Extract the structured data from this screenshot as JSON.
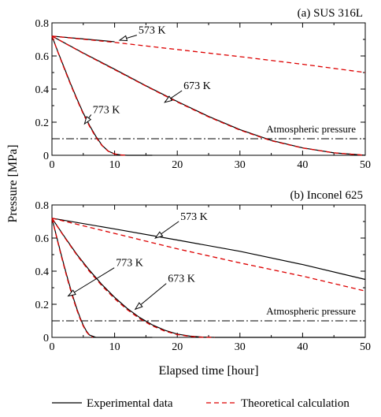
{
  "chart_data": {
    "type": "line",
    "ylabel": "Pressure [MPa]",
    "xlabel": "Elapsed time [hour]",
    "legend": {
      "position": "bottom",
      "entries": [
        {
          "name": "Experimental data",
          "style": "solid",
          "color": "#000000"
        },
        {
          "name": "Theoretical calculation",
          "style": "dashed",
          "color": "#dd0000"
        }
      ]
    },
    "atmospheric": {
      "label": "Atmospheric pressure",
      "y": 0.1
    },
    "panels": [
      {
        "id": "a",
        "title": "(a) SUS 316L",
        "xlim": [
          0,
          50
        ],
        "ylim": [
          0,
          0.8
        ],
        "xticks": [
          0,
          10,
          20,
          30,
          40,
          50
        ],
        "yticks": [
          0,
          0.2,
          0.4,
          0.6,
          0.8
        ],
        "ytick_labels": [
          "0",
          "0.2",
          "0.4",
          "0.6",
          "0.8"
        ],
        "series": [
          {
            "temp": "573 K",
            "kind": "experimental",
            "x": [
              0,
              5,
              10
            ],
            "y": [
              0.72,
              0.703,
              0.686
            ]
          },
          {
            "temp": "573 K",
            "kind": "theoretical",
            "x": [
              0,
              10,
              20,
              30,
              40,
              50
            ],
            "y": [
              0.72,
              0.682,
              0.639,
              0.596,
              0.55,
              0.5
            ]
          },
          {
            "temp": "673 K",
            "kind": "experimental",
            "x": [
              0,
              5,
              10,
              15,
              20,
              25,
              30,
              35,
              40,
              45,
              50
            ],
            "y": [
              0.72,
              0.618,
              0.52,
              0.42,
              0.325,
              0.235,
              0.155,
              0.09,
              0.045,
              0.015,
              0.0
            ]
          },
          {
            "temp": "673 K",
            "kind": "theoretical",
            "x": [
              0,
              5,
              10,
              15,
              20,
              25,
              30,
              35,
              40,
              45,
              50
            ],
            "y": [
              0.72,
              0.616,
              0.517,
              0.418,
              0.322,
              0.232,
              0.152,
              0.088,
              0.044,
              0.015,
              0.0
            ]
          },
          {
            "temp": "773 K",
            "kind": "experimental",
            "x": [
              0,
              1,
              2,
              3,
              4,
              5,
              6,
              7,
              8,
              9,
              10,
              11,
              12,
              13,
              14,
              16
            ],
            "y": [
              0.72,
              0.62,
              0.525,
              0.43,
              0.34,
              0.255,
              0.18,
              0.115,
              0.06,
              0.025,
              0.008,
              0.002,
              0.0,
              0.0,
              0.0,
              0.0
            ]
          },
          {
            "temp": "773 K",
            "kind": "theoretical",
            "x": [
              0,
              1,
              2,
              3,
              4,
              5,
              6,
              7,
              8,
              9,
              10,
              11,
              12
            ],
            "y": [
              0.72,
              0.618,
              0.52,
              0.425,
              0.335,
              0.25,
              0.175,
              0.11,
              0.058,
              0.024,
              0.008,
              0.002,
              0.0
            ]
          }
        ],
        "annotations": [
          {
            "text": "573 K",
            "x": 13.8,
            "y": 0.735,
            "arrow_to": [
              10.8,
              0.695
            ]
          },
          {
            "text": "673 K",
            "x": 21.0,
            "y": 0.4,
            "arrow_to": [
              18.0,
              0.32
            ]
          },
          {
            "text": "773 K",
            "x": 6.5,
            "y": 0.255,
            "arrow_to": [
              5.2,
              0.19
            ]
          }
        ]
      },
      {
        "id": "b",
        "title": "(b) Inconel 625",
        "xlim": [
          0,
          50
        ],
        "ylim": [
          0,
          0.8
        ],
        "xticks": [
          0,
          10,
          20,
          30,
          40,
          50
        ],
        "yticks": [
          0,
          0.2,
          0.4,
          0.6,
          0.8
        ],
        "ytick_labels": [
          "0",
          "0.2",
          "0.4",
          "0.6",
          "0.8"
        ],
        "series": [
          {
            "temp": "573 K",
            "kind": "experimental",
            "x": [
              0,
              10,
              20,
              30,
              40,
              50
            ],
            "y": [
              0.72,
              0.655,
              0.588,
              0.52,
              0.44,
              0.35
            ]
          },
          {
            "temp": "573 K",
            "kind": "theoretical",
            "x": [
              0,
              10,
              20,
              30,
              40,
              50
            ],
            "y": [
              0.72,
              0.628,
              0.535,
              0.45,
              0.37,
              0.28
            ]
          },
          {
            "temp": "673 K",
            "kind": "experimental",
            "x": [
              0,
              2,
              4,
              6,
              8,
              10,
              12,
              14,
              16,
              18,
              20,
              22,
              24,
              26,
              30,
              40,
              50
            ],
            "y": [
              0.72,
              0.608,
              0.5,
              0.405,
              0.318,
              0.242,
              0.175,
              0.12,
              0.076,
              0.043,
              0.02,
              0.008,
              0.002,
              0.0,
              0.0,
              0.0,
              0.0
            ]
          },
          {
            "temp": "673 K",
            "kind": "theoretical",
            "x": [
              0,
              2,
              4,
              6,
              8,
              10,
              12,
              14,
              16,
              18,
              20,
              22,
              24,
              26
            ],
            "y": [
              0.72,
              0.605,
              0.496,
              0.398,
              0.311,
              0.234,
              0.168,
              0.113,
              0.07,
              0.038,
              0.017,
              0.006,
              0.001,
              0.0
            ]
          },
          {
            "temp": "773 K",
            "kind": "experimental",
            "x": [
              0,
              0.5,
              1,
              1.5,
              2,
              2.5,
              3,
              3.5,
              4,
              4.5,
              5,
              5.5,
              6,
              7,
              8,
              10,
              12,
              14,
              16
            ],
            "y": [
              0.72,
              0.645,
              0.57,
              0.497,
              0.425,
              0.356,
              0.29,
              0.228,
              0.17,
              0.118,
              0.073,
              0.038,
              0.014,
              0.0,
              0.0,
              0.0,
              0.0,
              0.0,
              0.0
            ]
          },
          {
            "temp": "773 K",
            "kind": "theoretical",
            "x": [
              0,
              0.5,
              1,
              1.5,
              2,
              2.5,
              3,
              3.5,
              4,
              4.5,
              5,
              5.5,
              6,
              6.5
            ],
            "y": [
              0.72,
              0.642,
              0.565,
              0.49,
              0.418,
              0.348,
              0.282,
              0.22,
              0.163,
              0.112,
              0.068,
              0.034,
              0.011,
              0.0
            ]
          }
        ],
        "annotations": [
          {
            "text": "573 K",
            "x": 20.5,
            "y": 0.71,
            "arrow_to": [
              16.5,
              0.6
            ]
          },
          {
            "text": "773 K",
            "x": 10.2,
            "y": 0.43,
            "arrow_to": [
              2.6,
              0.25
            ]
          },
          {
            "text": "673 K",
            "x": 18.5,
            "y": 0.335,
            "arrow_to": [
              13.3,
              0.17
            ]
          }
        ]
      }
    ]
  }
}
